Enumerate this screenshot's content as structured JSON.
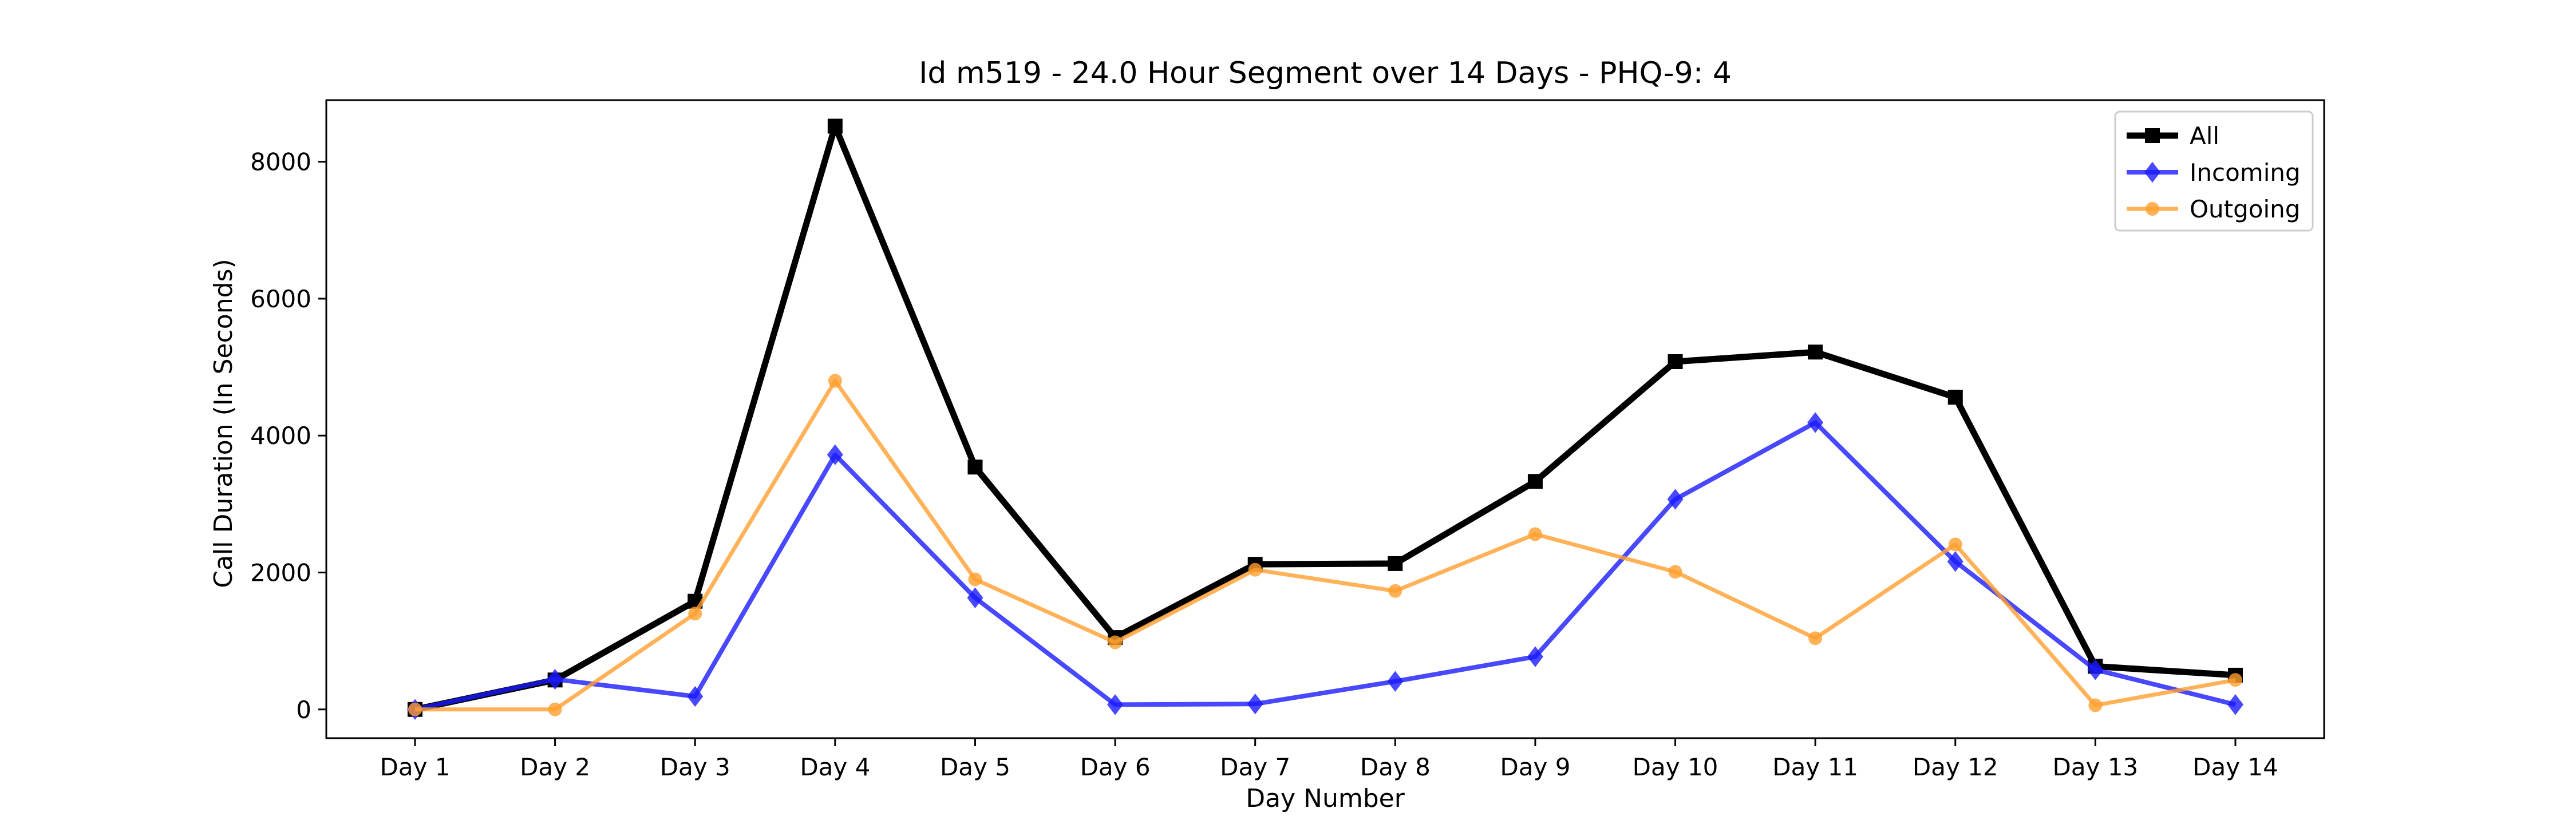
{
  "chart_data": {
    "type": "line",
    "title": "Id m519 - 24.0 Hour Segment over 14 Days - PHQ-9: 4",
    "xlabel": "Day Number",
    "ylabel": "Call Duration (In Seconds)",
    "categories": [
      "Day 1",
      "Day 2",
      "Day 3",
      "Day 4",
      "Day 5",
      "Day 6",
      "Day 7",
      "Day 8",
      "Day 9",
      "Day 10",
      "Day 11",
      "Day 12",
      "Day 13",
      "Day 14"
    ],
    "yticks": [
      0,
      2000,
      4000,
      6000,
      8000
    ],
    "ylim": [
      -420,
      8900
    ],
    "grid": false,
    "legend_position": "top-right",
    "series": [
      {
        "name": "All",
        "color": "#000000",
        "marker": "square",
        "values": [
          0,
          430,
          1580,
          8520,
          3540,
          1050,
          2120,
          2130,
          3330,
          5080,
          5220,
          4560,
          630,
          500
        ]
      },
      {
        "name": "Incoming",
        "color": "#1a1aff",
        "marker": "diamond",
        "values": [
          0,
          440,
          190,
          3720,
          1630,
          70,
          80,
          410,
          770,
          3070,
          4190,
          2160,
          580,
          70
        ]
      },
      {
        "name": "Outgoing",
        "color": "#ff9f2e",
        "marker": "circle",
        "values": [
          0,
          0,
          1400,
          4800,
          1900,
          980,
          2040,
          1730,
          2560,
          2010,
          1040,
          2410,
          60,
          430
        ]
      }
    ]
  }
}
